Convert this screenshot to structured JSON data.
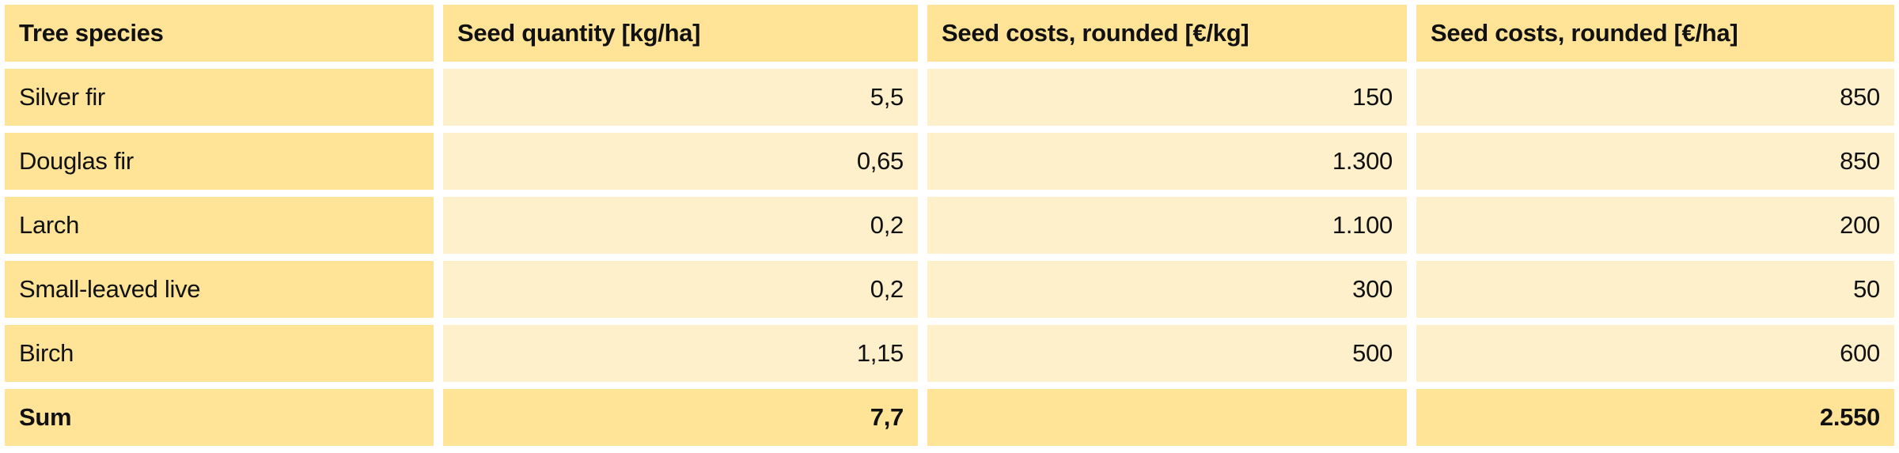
{
  "colors": {
    "header_bg": "#ffe497",
    "body_bg": "#fff0cc"
  },
  "table": {
    "headers": [
      "Tree species",
      "Seed quantity [kg/ha]",
      "Seed costs, rounded [€/kg]",
      "Seed costs, rounded [€/ha]"
    ],
    "rows": [
      [
        "Silver fir",
        "5,5",
        "150",
        "850"
      ],
      [
        "Douglas fir",
        "0,65",
        "1.300",
        "850"
      ],
      [
        "Larch",
        "0,2",
        "1.100",
        "200"
      ],
      [
        "Small-leaved live",
        "0,2",
        "300",
        "50"
      ],
      [
        "Birch",
        "1,15",
        "500",
        "600"
      ]
    ],
    "sum": [
      "Sum",
      "7,7",
      "",
      "2.550"
    ]
  }
}
